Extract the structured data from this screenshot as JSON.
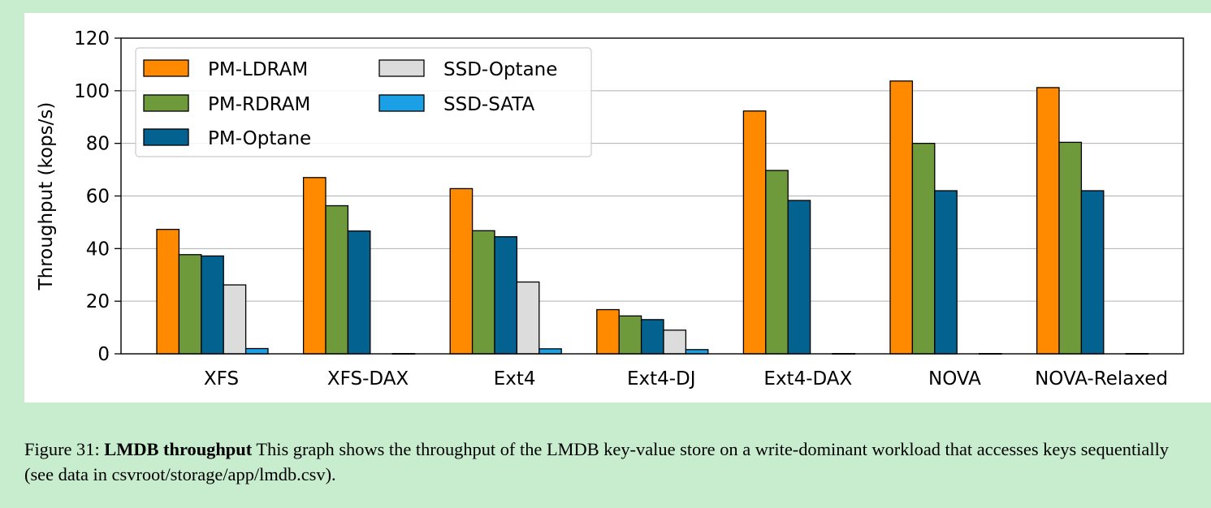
{
  "chart_data": {
    "type": "bar",
    "ylabel": "Throughput (kops/s)",
    "ylim": [
      0,
      120
    ],
    "yticks": [
      0,
      20,
      40,
      60,
      80,
      100,
      120
    ],
    "grid": "horizontal",
    "legend_position": "top-left",
    "categories": [
      "XFS",
      "XFS-DAX",
      "Ext4",
      "Ext4-DJ",
      "Ext4-DAX",
      "NOVA",
      "NOVA-Relaxed"
    ],
    "series": [
      {
        "name": "PM-LDRAM",
        "color": "#ff8a00",
        "values": [
          47.3,
          67.0,
          62.8,
          16.8,
          92.3,
          103.7,
          101.2
        ]
      },
      {
        "name": "PM-RDRAM",
        "color": "#6e9a3c",
        "values": [
          37.7,
          56.3,
          46.8,
          14.4,
          69.7,
          80.0,
          80.4
        ]
      },
      {
        "name": "PM-Optane",
        "color": "#03628f",
        "values": [
          37.2,
          46.7,
          44.5,
          13.0,
          58.3,
          62.0,
          62.0
        ]
      },
      {
        "name": "SSD-Optane",
        "color": "#dcdcdc",
        "values": [
          26.2,
          0,
          27.3,
          9.0,
          0,
          0,
          0
        ]
      },
      {
        "name": "SSD-SATA",
        "color": "#1ba0e5",
        "values": [
          2.0,
          0.1,
          1.9,
          1.6,
          0.1,
          0.1,
          0.1
        ]
      }
    ]
  },
  "caption": {
    "label": "Figure 31:",
    "title": "LMDB throughput",
    "text": "This graph shows the throughput of the LMDB key-value store on a write-dominant workload that accesses keys sequentially (see data in csvroot/storage/app/lmdb.csv)."
  }
}
